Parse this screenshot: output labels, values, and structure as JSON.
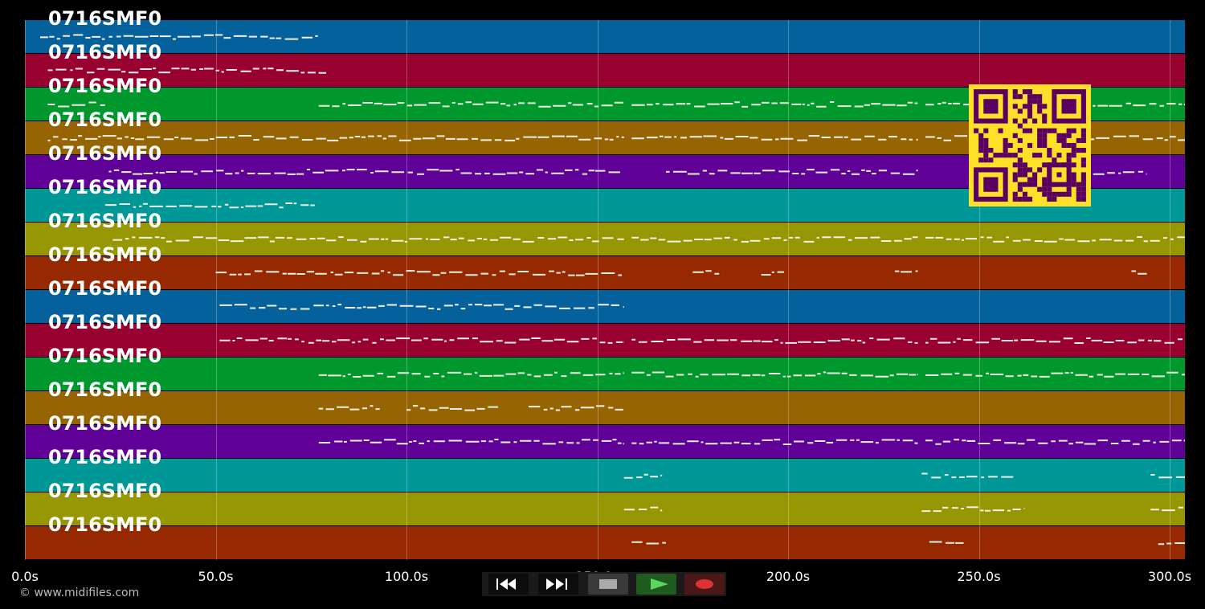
{
  "tracks": [
    {
      "name": "0716SMF0",
      "color": "#04619b"
    },
    {
      "name": "0716SMF0",
      "color": "#97002f"
    },
    {
      "name": "0716SMF0",
      "color": "#00972c"
    },
    {
      "name": "0716SMF0",
      "color": "#966403"
    },
    {
      "name": "0716SMF0",
      "color": "#5f0097"
    },
    {
      "name": "0716SMF0",
      "color": "#009797"
    },
    {
      "name": "0716SMF0",
      "color": "#979603"
    },
    {
      "name": "0716SMF0",
      "color": "#962902"
    },
    {
      "name": "0716SMF0",
      "color": "#04619b"
    },
    {
      "name": "0716SMF0",
      "color": "#97002f"
    },
    {
      "name": "0716SMF0",
      "color": "#00972c"
    },
    {
      "name": "0716SMF0",
      "color": "#966403"
    },
    {
      "name": "0716SMF0",
      "color": "#5f0097"
    },
    {
      "name": "0716SMF0",
      "color": "#009797"
    },
    {
      "name": "0716SMF0",
      "color": "#979603"
    },
    {
      "name": "0716SMF0",
      "color": "#962902"
    }
  ],
  "time_axis": {
    "ticks": [
      "0.0s",
      "50.0s",
      "100.0s",
      "150.0s",
      "200.0s",
      "250.0s",
      "300.0s"
    ],
    "max_seconds": 304
  },
  "note_segments": [
    [
      [
        4,
        77
      ]
    ],
    [
      [
        6,
        79
      ]
    ],
    [
      [
        6,
        21
      ],
      [
        77,
        157
      ],
      [
        159,
        234
      ],
      [
        236,
        304
      ]
    ],
    [
      [
        6,
        157
      ],
      [
        159,
        234
      ],
      [
        236,
        304
      ]
    ],
    [
      [
        22,
        157
      ],
      [
        168,
        234
      ],
      [
        250,
        294
      ]
    ],
    [
      [
        21,
        76
      ]
    ],
    [
      [
        23,
        157
      ],
      [
        159,
        234
      ],
      [
        236,
        304
      ]
    ],
    [
      [
        50,
        157
      ],
      [
        175,
        183
      ],
      [
        193,
        199
      ],
      [
        228,
        234
      ],
      [
        290,
        294
      ]
    ],
    [
      [
        51,
        157
      ]
    ],
    [
      [
        51,
        157
      ],
      [
        159,
        234
      ],
      [
        236,
        304
      ]
    ],
    [
      [
        77,
        157
      ],
      [
        159,
        234
      ],
      [
        236,
        304
      ]
    ],
    [
      [
        77,
        93
      ],
      [
        100,
        124
      ],
      [
        132,
        157
      ]
    ],
    [
      [
        77,
        157
      ],
      [
        159,
        234
      ],
      [
        236,
        304
      ]
    ],
    [
      [
        157,
        167
      ],
      [
        235,
        259
      ],
      [
        295,
        304
      ]
    ],
    [
      [
        157,
        167
      ],
      [
        235,
        262
      ],
      [
        295,
        304
      ]
    ],
    [
      [
        159,
        168
      ],
      [
        237,
        246
      ],
      [
        297,
        304
      ]
    ]
  ],
  "copyright": "© www.midifiles.com",
  "qr_colors": {
    "fg": "#5a0060",
    "bg": "#ffe028"
  },
  "transport": [
    {
      "name": "rewind-icon",
      "color": "#ffffff"
    },
    {
      "name": "fast-forward-icon",
      "color": "#ffffff"
    },
    {
      "name": "stop-icon",
      "color": "#aaaaaa"
    },
    {
      "name": "play-icon",
      "color": "#5cd65c"
    },
    {
      "name": "record-icon",
      "color": "#dd3333"
    }
  ]
}
